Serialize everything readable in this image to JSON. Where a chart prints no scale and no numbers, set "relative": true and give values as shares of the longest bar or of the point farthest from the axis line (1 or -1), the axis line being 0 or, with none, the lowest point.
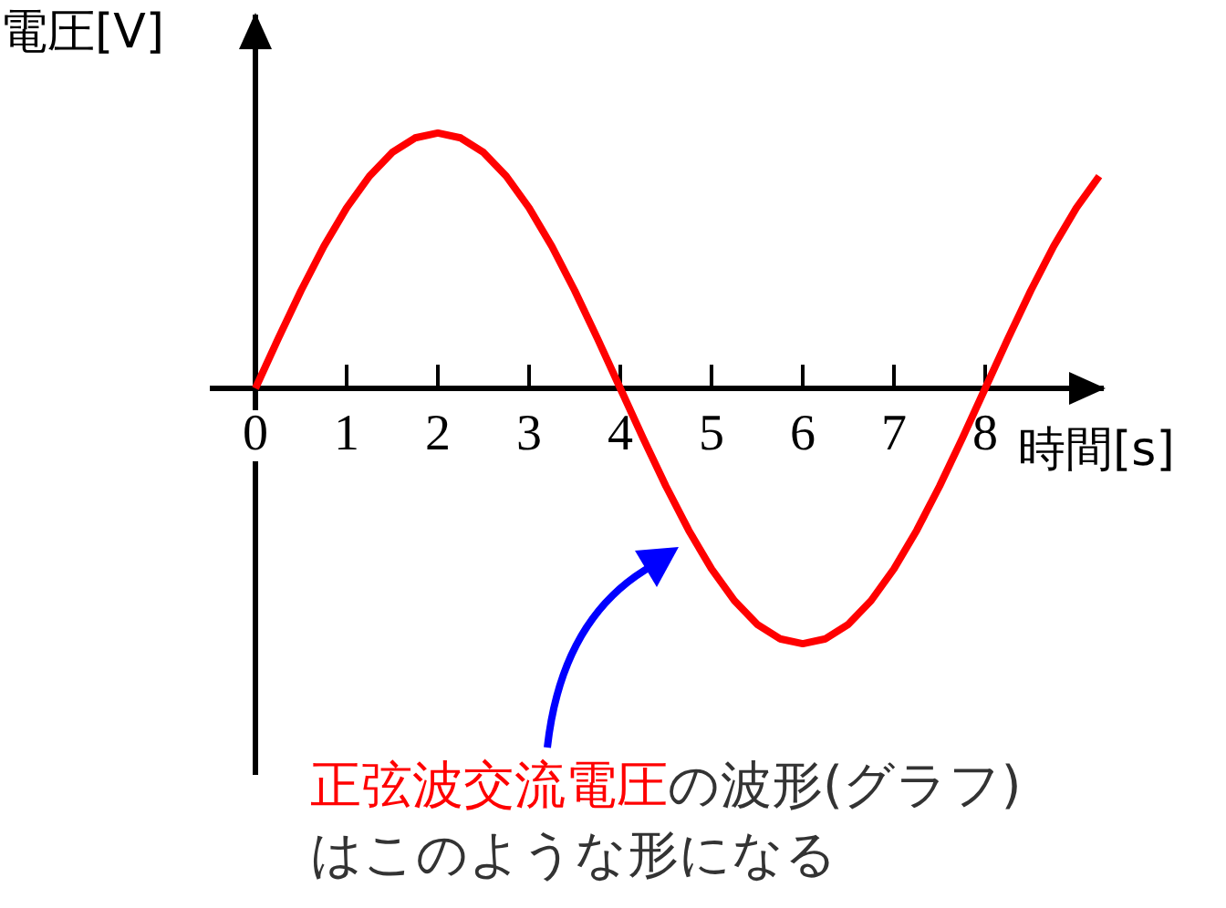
{
  "chart_data": {
    "type": "line",
    "relative": true,
    "xlabel": "時間[s]",
    "ylabel": "電圧[V]",
    "x": [
      0,
      0.25,
      0.5,
      0.75,
      1,
      1.25,
      1.5,
      1.75,
      2,
      2.25,
      2.5,
      2.75,
      3,
      3.25,
      3.5,
      3.75,
      4,
      4.25,
      4.5,
      4.75,
      5,
      5.25,
      5.5,
      5.75,
      6,
      6.25,
      6.5,
      6.75,
      7,
      7.25,
      7.5,
      7.75,
      8,
      8.25,
      8.5,
      8.75,
      9,
      9.25
    ],
    "series": [
      {
        "color": "#ff0000",
        "values": [
          0,
          0.195,
          0.383,
          0.556,
          0.707,
          0.831,
          0.924,
          0.981,
          1,
          0.981,
          0.924,
          0.831,
          0.707,
          0.556,
          0.383,
          0.195,
          0,
          -0.195,
          -0.383,
          -0.556,
          -0.707,
          -0.831,
          -0.924,
          -0.981,
          -1,
          -0.981,
          -0.924,
          -0.831,
          -0.707,
          -0.556,
          -0.383,
          -0.195,
          0,
          0.195,
          0.383,
          0.556,
          0.707,
          0.831
        ]
      }
    ],
    "xlim": [
      -0.5,
      9.3
    ],
    "xticks": [
      0,
      1,
      2,
      3,
      4,
      5,
      6,
      7,
      8
    ],
    "annotations": [
      "正弦波交流電圧",
      "の波形(グラフ)はこのような形になる"
    ],
    "legend": false,
    "marker": "none",
    "line_style": "solid"
  }
}
